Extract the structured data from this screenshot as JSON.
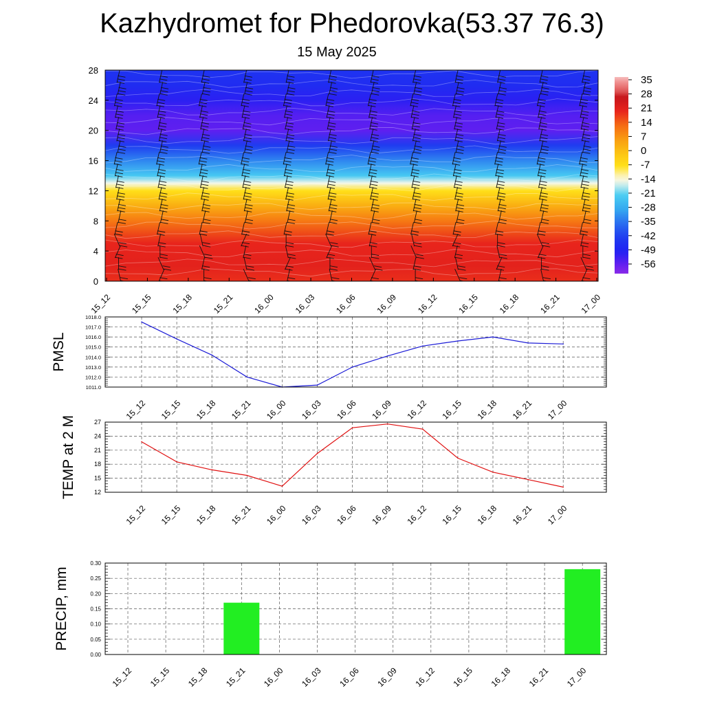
{
  "title": "Kazhydromet for Phedorovka(53.37 76.3)",
  "subtitle": "15 May 2025",
  "time_labels": [
    "15_12",
    "15_15",
    "15_18",
    "15_21",
    "16_00",
    "16_03",
    "16_06",
    "16_09",
    "16_12",
    "16_15",
    "16_18",
    "16_21",
    "17_00"
  ],
  "chart_data": [
    {
      "type": "heatmap",
      "name": "temperature-wind-cross-section",
      "x": [
        "15_12",
        "15_15",
        "15_18",
        "15_21",
        "16_00",
        "16_03",
        "16_06",
        "16_09",
        "16_12",
        "16_15",
        "16_18",
        "16_21",
        "17_00"
      ],
      "y_ticks": [
        0,
        4,
        8,
        12,
        16,
        20,
        24,
        28
      ],
      "ylim": [
        0,
        28
      ],
      "colorbar": {
        "labels": [
          "35",
          "28",
          "21",
          "14",
          "7",
          "0",
          "-7",
          "-14",
          "-21",
          "-28",
          "-35",
          "-42",
          "-49",
          "-56"
        ],
        "range": [
          -60,
          38
        ]
      },
      "profile": [
        {
          "level": 0,
          "value": 20
        },
        {
          "level": 2,
          "value": 22
        },
        {
          "level": 5,
          "value": 21
        },
        {
          "level": 8,
          "value": 12
        },
        {
          "level": 10,
          "value": 4
        },
        {
          "level": 12,
          "value": -6
        },
        {
          "level": 13,
          "value": -14
        },
        {
          "level": 14,
          "value": -22
        },
        {
          "level": 16,
          "value": -32
        },
        {
          "level": 18,
          "value": -42
        },
        {
          "level": 20,
          "value": -55
        },
        {
          "level": 22,
          "value": -54
        },
        {
          "level": 24,
          "value": -50
        },
        {
          "level": 26,
          "value": -46
        },
        {
          "level": 28,
          "value": -44
        }
      ],
      "colors": {
        "low": "#7d24e6",
        "cold": "#1f2df0",
        "mid_cold": "#35b6ef",
        "zero": "#ffe31a",
        "warm": "#f98a12",
        "hot": "#e8241c"
      }
    },
    {
      "type": "line",
      "name": "pmsl",
      "ylabel": "PMSL",
      "x": [
        "15_12",
        "15_15",
        "15_18",
        "15_21",
        "16_00",
        "16_03",
        "16_06",
        "16_09",
        "16_12",
        "16_15",
        "16_18",
        "16_21",
        "17_00"
      ],
      "values": [
        1017.5,
        1015.8,
        1014.2,
        1012.0,
        1011.0,
        1011.2,
        1013.0,
        1014.1,
        1015.1,
        1015.6,
        1016.0,
        1015.4,
        1015.3
      ],
      "y_ticks": [
        "1011.0",
        "1012.0",
        "1013.0",
        "1014.0",
        "1015.0",
        "1016.0",
        "1017.0",
        "1018.0"
      ],
      "ylim": [
        1011.0,
        1018.0
      ],
      "color": "#1a1ad6",
      "grid": true
    },
    {
      "type": "line",
      "name": "temp-2m",
      "ylabel": "TEMP at 2 M",
      "x": [
        "15_12",
        "15_15",
        "15_18",
        "15_21",
        "16_00",
        "16_03",
        "16_06",
        "16_09",
        "16_12",
        "16_15",
        "16_18",
        "16_21",
        "17_00"
      ],
      "values": [
        22.8,
        18.5,
        16.8,
        15.6,
        13.3,
        20.3,
        25.8,
        26.6,
        25.5,
        19.3,
        16.3,
        14.7,
        13.1
      ],
      "y_ticks": [
        "12",
        "15",
        "18",
        "21",
        "24",
        "27"
      ],
      "ylim": [
        12,
        27
      ],
      "color": "#e01010",
      "grid": true
    },
    {
      "type": "bar",
      "name": "precip",
      "ylabel": "PRECIP, mm",
      "categories": [
        "15_12",
        "15_15",
        "15_18",
        "15_21",
        "16_00",
        "16_03",
        "16_06",
        "16_09",
        "16_12",
        "16_15",
        "16_18",
        "16_21",
        "17_00"
      ],
      "values": [
        0,
        0,
        0,
        0.17,
        0,
        0,
        0,
        0,
        0,
        0,
        0,
        0,
        0.28
      ],
      "y_ticks": [
        "0.00",
        "0.05",
        "0.10",
        "0.15",
        "0.20",
        "0.25",
        "0.30"
      ],
      "ylim": [
        0,
        0.3
      ],
      "color": "#22ee22",
      "grid": true
    }
  ]
}
